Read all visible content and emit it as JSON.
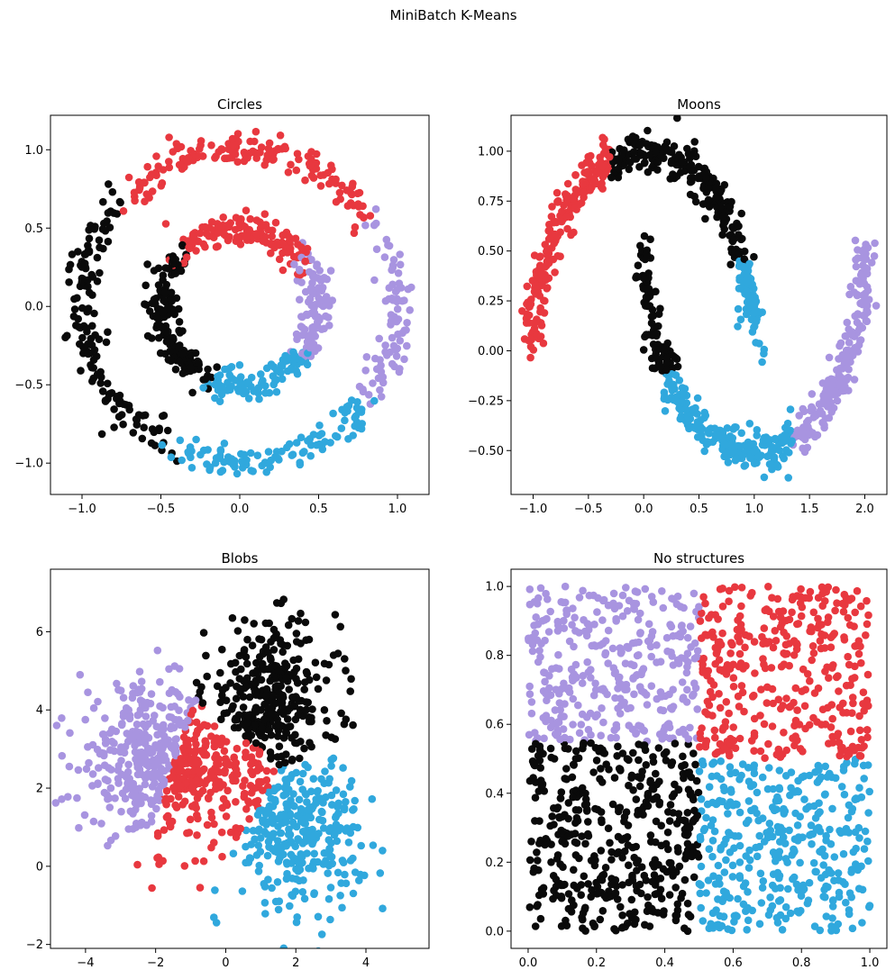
{
  "chart_data": {
    "type": "scatter",
    "title": "MiniBatch K-Means",
    "cluster_colors": [
      "#0a0a0a",
      "#e8383f",
      "#a894e0",
      "#30a8dd"
    ],
    "subplots": [
      {
        "title": "Circles",
        "generator": "circles",
        "xlim": [
          -1.2,
          1.2
        ],
        "ylim": [
          -1.2,
          1.22
        ],
        "xticks": [
          -1.0,
          -0.5,
          0.0,
          0.5,
          1.0
        ],
        "xtick_labels": [
          "−1.0",
          "−0.5",
          "0.0",
          "0.5",
          "1.0"
        ],
        "yticks": [
          -1.0,
          -0.5,
          0.0,
          0.5,
          1.0
        ],
        "ytick_labels": [
          "−1.0",
          "−0.5",
          "0.0",
          "0.5",
          "1.0"
        ],
        "clusters": [
          {
            "color": "#0a0a0a",
            "angle_range_deg": [
              135,
              246
            ]
          },
          {
            "color": "#e8383f",
            "angle_range_deg": [
              36,
              135
            ]
          },
          {
            "color": "#a894e0",
            "angle_range_deg": [
              -36,
              36
            ]
          },
          {
            "color": "#30a8dd",
            "angle_range_deg": [
              246,
              324
            ]
          }
        ]
      },
      {
        "title": "Moons",
        "generator": "moons",
        "xlim": [
          -1.2,
          2.2
        ],
        "ylim": [
          -0.72,
          1.18
        ],
        "xticks": [
          -1.0,
          -0.5,
          0.0,
          0.5,
          1.0,
          1.5,
          2.0
        ],
        "xtick_labels": [
          "−1.0",
          "−0.5",
          "0.0",
          "0.5",
          "1.0",
          "1.5",
          "2.0"
        ],
        "yticks": [
          -0.5,
          -0.25,
          0.0,
          0.25,
          0.5,
          0.75,
          1.0
        ],
        "ytick_labels": [
          "−0.50",
          "−0.25",
          "0.00",
          "0.25",
          "0.50",
          "0.75",
          "1.00"
        ],
        "clusters": [
          {
            "color": "#0a0a0a",
            "region": "upper moon x > -0.3, lower moon x < 0.45"
          },
          {
            "color": "#e8383f",
            "region": "upper moon x < -0.3"
          },
          {
            "color": "#a894e0",
            "region": "lower moon x > 1.35"
          },
          {
            "color": "#30a8dd",
            "region": "upper moon x > 0.85 near center, lower moon 0.45 < x < 1.35"
          }
        ]
      },
      {
        "title": "Blobs",
        "generator": "blobs",
        "xlim": [
          -5.0,
          5.8
        ],
        "ylim": [
          -2.1,
          7.6
        ],
        "xticks": [
          -4,
          -2,
          0,
          2,
          4
        ],
        "xtick_labels": [
          "−4",
          "−2",
          "0",
          "2",
          "4"
        ],
        "yticks": [
          -2,
          0,
          2,
          4,
          6
        ],
        "ytick_labels": [
          "−2",
          "0",
          "2",
          "4",
          "6"
        ],
        "clusters": [
          {
            "color": "#0a0a0a",
            "center": [
              1.3,
              4.3
            ]
          },
          {
            "color": "#e8383f",
            "center": [
              -0.6,
              2.2
            ]
          },
          {
            "color": "#a894e0",
            "center": [
              -2.3,
              2.9
            ]
          },
          {
            "color": "#30a8dd",
            "center": [
              2.0,
              0.9
            ]
          }
        ]
      },
      {
        "title": "No structures",
        "generator": "uniform",
        "xlim": [
          -0.05,
          1.05
        ],
        "ylim": [
          -0.05,
          1.05
        ],
        "xticks": [
          0.0,
          0.2,
          0.4,
          0.6,
          0.8,
          1.0
        ],
        "xtick_labels": [
          "0.0",
          "0.2",
          "0.4",
          "0.6",
          "0.8",
          "1.0"
        ],
        "yticks": [
          0.0,
          0.2,
          0.4,
          0.6,
          0.8,
          1.0
        ],
        "ytick_labels": [
          "0.0",
          "0.2",
          "0.4",
          "0.6",
          "0.8",
          "1.0"
        ],
        "clusters": [
          {
            "color": "#0a0a0a",
            "region": "x < 0.5, y < 0.55"
          },
          {
            "color": "#e8383f",
            "region": "x > 0.5, y > 0.5"
          },
          {
            "color": "#a894e0",
            "region": "x < 0.5, y > 0.55"
          },
          {
            "color": "#30a8dd",
            "region": "x > 0.5, y < 0.5"
          }
        ]
      }
    ]
  }
}
